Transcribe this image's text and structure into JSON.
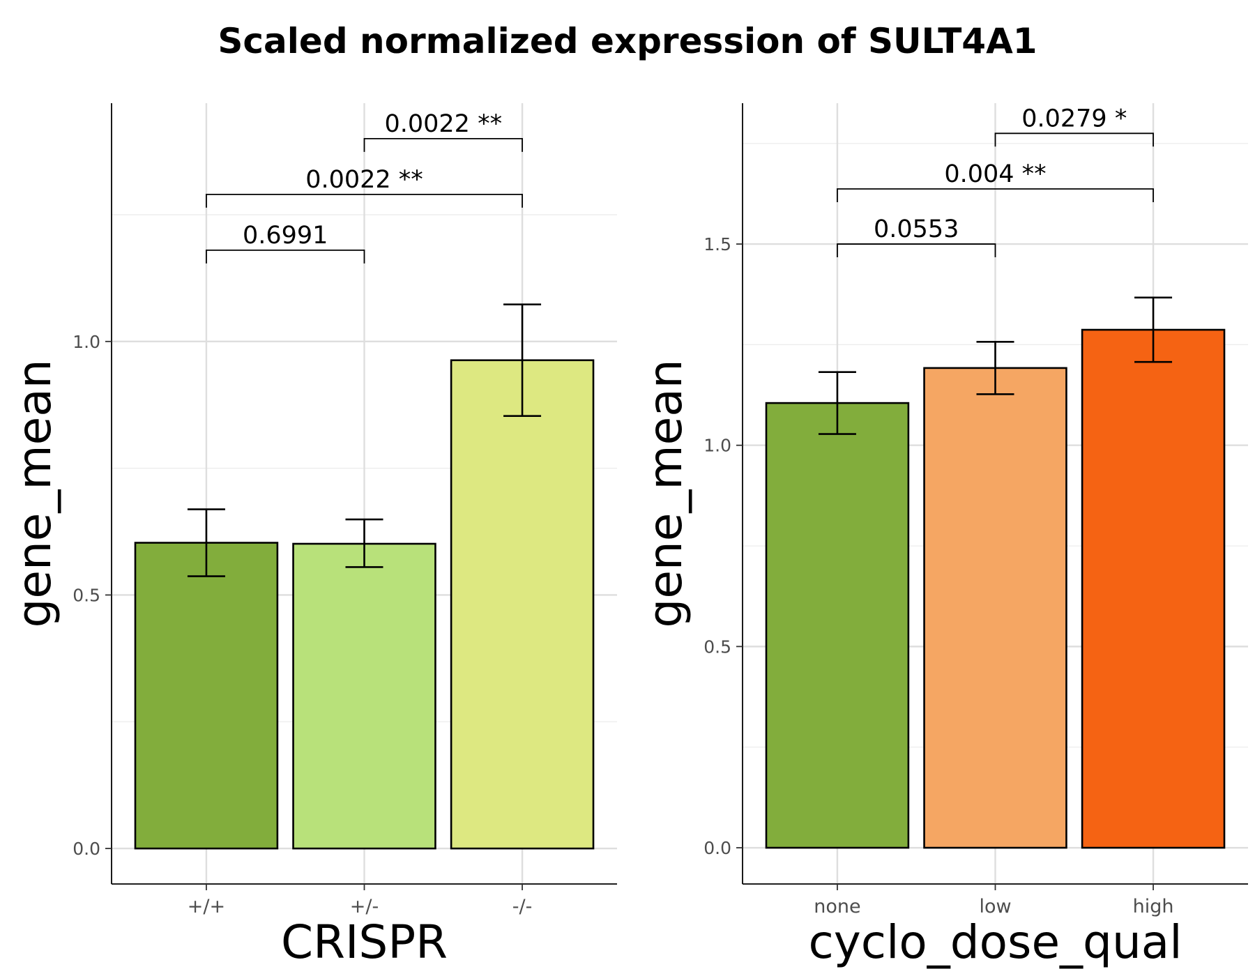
{
  "title": "Scaled normalized expression of SULT4A1",
  "chart_data": [
    {
      "type": "bar",
      "xlabel": "CRISPR",
      "ylabel": "gene_mean",
      "categories": [
        "+/+",
        "+/-",
        "-/-"
      ],
      "values": [
        0.603,
        0.601,
        0.963
      ],
      "error_low": [
        0.537,
        0.555,
        0.853
      ],
      "error_high": [
        0.669,
        0.649,
        1.073
      ],
      "colors": [
        "#82ad3c",
        "#b8e17a",
        "#dde881"
      ],
      "ylim": [
        -0.07,
        1.47
      ],
      "yticks": [
        "0.0",
        "0.5",
        "1.0"
      ],
      "ytick_values": [
        0.0,
        0.5,
        1.0
      ],
      "grid": true,
      "comparisons": [
        {
          "from": 0,
          "to": 1,
          "label": "0.6991",
          "y": 1.18
        },
        {
          "from": 0,
          "to": 2,
          "label": "0.0022 **",
          "y": 1.29
        },
        {
          "from": 1,
          "to": 2,
          "label": "0.0022 **",
          "y": 1.4
        }
      ]
    },
    {
      "type": "bar",
      "xlabel": "cyclo_dose_qual",
      "ylabel": "gene_mean",
      "categories": [
        "none",
        "low",
        "high"
      ],
      "values": [
        1.105,
        1.192,
        1.287
      ],
      "error_low": [
        1.028,
        1.127,
        1.207
      ],
      "error_high": [
        1.182,
        1.257,
        1.367
      ],
      "colors": [
        "#82ad3c",
        "#f5a663",
        "#f56313"
      ],
      "ylim": [
        -0.09,
        1.85
      ],
      "yticks": [
        "0.0",
        "0.5",
        "1.0",
        "1.5"
      ],
      "ytick_values": [
        0.0,
        0.5,
        1.0,
        1.5
      ],
      "grid": true,
      "comparisons": [
        {
          "from": 0,
          "to": 1,
          "label": "0.0553",
          "y": 1.5
        },
        {
          "from": 0,
          "to": 2,
          "label": "0.004 **",
          "y": 1.637
        },
        {
          "from": 1,
          "to": 2,
          "label": "0.0279 *",
          "y": 1.775
        }
      ]
    }
  ]
}
